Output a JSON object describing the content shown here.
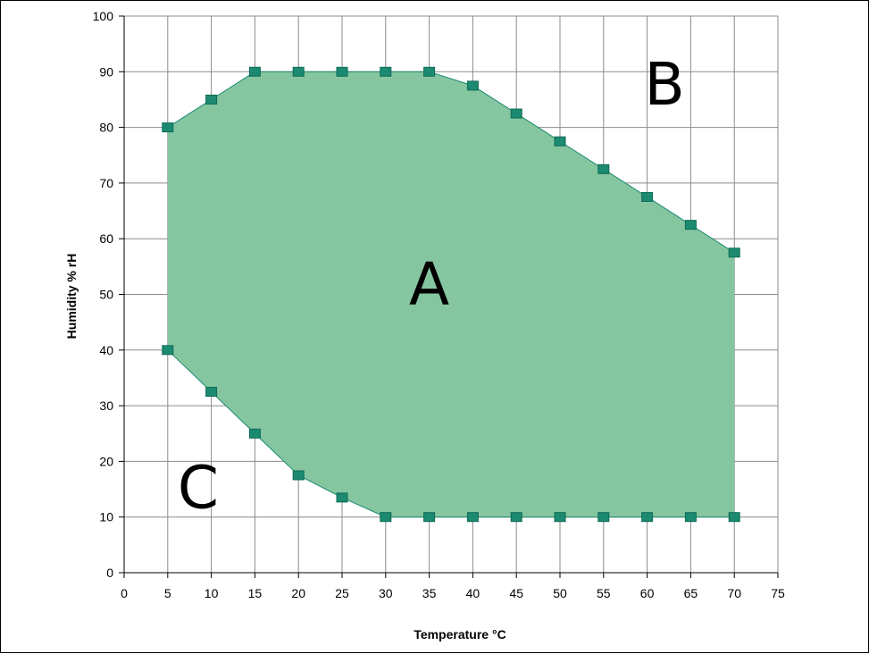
{
  "chart_data": {
    "type": "area",
    "xlabel": "Temperature °C",
    "ylabel": "Humidity % rH",
    "xlim": [
      0,
      75
    ],
    "ylim": [
      0,
      100
    ],
    "xticks": [
      0,
      5,
      10,
      15,
      20,
      25,
      30,
      35,
      40,
      45,
      50,
      55,
      60,
      65,
      70,
      75
    ],
    "yticks": [
      0,
      10,
      20,
      30,
      40,
      50,
      60,
      70,
      80,
      90,
      100
    ],
    "grid": true,
    "fill_color": "#85c6a1",
    "marker_color": "#1b8a70",
    "line_color": "#1b8a70",
    "series": [
      {
        "x": [
          5,
          10,
          15,
          20,
          25,
          30,
          35,
          40,
          45,
          50,
          55,
          60,
          65,
          70
        ],
        "y": [
          80,
          85,
          90,
          90,
          90,
          90,
          90,
          87.5,
          82.5,
          77.5,
          72.5,
          67.5,
          62.5,
          57.5
        ]
      },
      {
        "x": [
          5,
          10,
          15,
          20,
          25,
          30,
          35,
          40,
          45,
          50,
          55,
          60,
          65,
          70
        ],
        "y": [
          40,
          32.5,
          25,
          17.5,
          13.5,
          10,
          10,
          10,
          10,
          10,
          10,
          10,
          10,
          10
        ]
      }
    ],
    "annotations": [
      {
        "text": "A",
        "x": 35,
        "y": 52
      },
      {
        "text": "B",
        "x": 62,
        "y": 88
      },
      {
        "text": "C",
        "x": 8.5,
        "y": 15.5
      }
    ]
  }
}
